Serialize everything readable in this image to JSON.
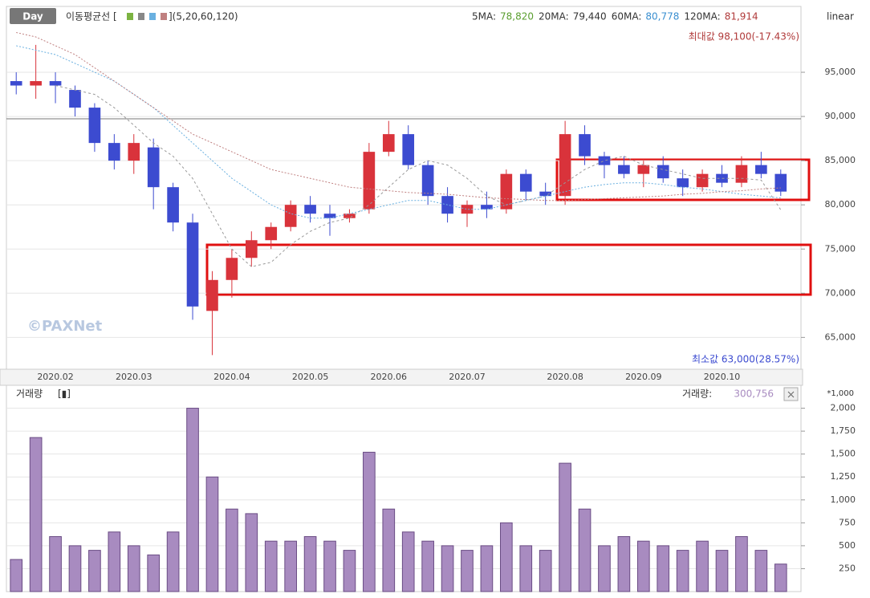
{
  "header": {
    "period": "Day",
    "ma_title": "이동평균선 [",
    "ma_params": "](5,20,60,120)",
    "ma_legend": [
      {
        "name": "5MA:",
        "value": "78,820",
        "color": "#5a9e2f"
      },
      {
        "name": "20MA:",
        "value": "79,440",
        "color": "#333333"
      },
      {
        "name": "60MA:",
        "value": "80,778",
        "color": "#3a8fd0"
      },
      {
        "name": "120MA:",
        "value": "81,914",
        "color": "#b03a3a"
      }
    ],
    "scale": "linear",
    "max_label": "최대값 98,100(-17.43%)",
    "min_label": "최소값 63,000(28.57%)",
    "volume_title": "거래량",
    "volume_box": "[▮]",
    "volume_legend_name": "거래량:",
    "volume_legend_value": "300,756",
    "volume_unit": "*1,000",
    "watermark": "©PAXNet"
  },
  "chart_data": [
    {
      "type": "candlestick",
      "up_color": "#d9333b",
      "down_color": "#3c4bd0",
      "categories": [
        null,
        null,
        "2020.02",
        null,
        null,
        null,
        "2020.03",
        null,
        null,
        null,
        null,
        "2020.04",
        null,
        null,
        null,
        "2020.05",
        null,
        null,
        null,
        "2020.06",
        null,
        null,
        null,
        "2020.07",
        null,
        null,
        null,
        null,
        "2020.08",
        null,
        null,
        null,
        "2020.09",
        null,
        null,
        null,
        "2020.10",
        null,
        null,
        null
      ],
      "open": [
        94000,
        93500,
        94000,
        93000,
        91000,
        87000,
        85000,
        86500,
        82000,
        78000,
        68000,
        71500,
        74000,
        76000,
        77500,
        80000,
        79000,
        78500,
        79500,
        86000,
        88000,
        84500,
        81000,
        79000,
        80000,
        79500,
        83500,
        81500,
        81000,
        88000,
        85500,
        84500,
        83500,
        84500,
        83000,
        82000,
        83500,
        82500,
        84500,
        83500
      ],
      "high": [
        95000,
        98100,
        95000,
        93500,
        91500,
        88000,
        88000,
        87500,
        82500,
        79000,
        72500,
        75000,
        77000,
        78000,
        80500,
        81000,
        80000,
        79500,
        87000,
        89500,
        89000,
        85000,
        82000,
        80500,
        81500,
        84000,
        84000,
        82500,
        89500,
        89000,
        86000,
        85500,
        85000,
        85500,
        84000,
        84000,
        84500,
        85500,
        86000,
        84000
      ],
      "low": [
        92500,
        92000,
        91500,
        90000,
        86000,
        84000,
        83500,
        79500,
        77000,
        67000,
        63000,
        69500,
        73000,
        75000,
        77000,
        78000,
        76500,
        78000,
        79000,
        85500,
        84000,
        80000,
        78000,
        77500,
        78500,
        79000,
        80500,
        80000,
        80000,
        84500,
        83000,
        83000,
        82000,
        82500,
        81000,
        81500,
        82000,
        82000,
        83000,
        81000
      ],
      "close": [
        93500,
        94000,
        93500,
        91000,
        87000,
        85000,
        87000,
        82000,
        78000,
        68500,
        71500,
        74000,
        76000,
        77500,
        80000,
        79000,
        78500,
        79000,
        86000,
        88000,
        84500,
        81000,
        79000,
        80000,
        79500,
        83500,
        81500,
        81000,
        88000,
        85500,
        84500,
        83500,
        84500,
        83000,
        82000,
        83500,
        82500,
        84500,
        83500,
        81500
      ],
      "series": [
        {
          "color": "#999999",
          "dash": "3 3",
          "values": [
            null,
            null,
            93500,
            93000,
            92500,
            91000,
            89000,
            87000,
            85500,
            83000,
            79000,
            75000,
            73000,
            73500,
            75500,
            77000,
            78000,
            78500,
            80000,
            82000,
            84000,
            85000,
            84500,
            83000,
            81000,
            80000,
            80500,
            81000,
            82500,
            84000,
            85000,
            85500,
            84500,
            84000,
            83500,
            83000,
            83000,
            83000,
            82800,
            79440
          ]
        },
        {
          "color": "#6ab0e0",
          "dash": "2 2",
          "values": [
            98000,
            97500,
            97000,
            96000,
            95000,
            94000,
            92500,
            91000,
            89000,
            87000,
            85000,
            83000,
            81500,
            80000,
            79000,
            78500,
            78500,
            79000,
            79500,
            80000,
            80500,
            80500,
            80000,
            79500,
            79500,
            80000,
            80500,
            81000,
            81500,
            82000,
            82300,
            82500,
            82500,
            82300,
            82000,
            81800,
            81500,
            81200,
            81000,
            80778
          ]
        },
        {
          "color": "#c08080",
          "dash": "2 2",
          "values": [
            99500,
            99000,
            98000,
            97000,
            95500,
            94000,
            92500,
            91000,
            89500,
            88000,
            87000,
            86000,
            85000,
            84000,
            83500,
            83000,
            82500,
            82000,
            81800,
            81600,
            81400,
            81300,
            81200,
            81000,
            80800,
            80700,
            80600,
            80500,
            80500,
            80600,
            80700,
            80800,
            80900,
            81000,
            81200,
            81300,
            81500,
            81600,
            81800,
            81914
          ]
        }
      ],
      "ylim": [
        61400,
        102450
      ],
      "yticks": [
        {
          "value": 65000,
          "label": "65,000"
        },
        {
          "value": 70000,
          "label": "70,000"
        },
        {
          "value": 75000,
          "label": "75,000"
        },
        {
          "value": 80000,
          "label": "80,000"
        },
        {
          "value": 85000,
          "label": "85,000"
        },
        {
          "value": 90000,
          "label": "90,000"
        },
        {
          "value": 95000,
          "label": "95,000"
        }
      ],
      "grid": true
    },
    {
      "type": "bar",
      "color": "#a88bc0",
      "edge": "#6a4c84",
      "values": [
        350,
        1680,
        600,
        500,
        450,
        650,
        500,
        400,
        650,
        2000,
        1250,
        900,
        850,
        550,
        550,
        600,
        550,
        450,
        1520,
        900,
        650,
        550,
        500,
        450,
        500,
        750,
        500,
        450,
        1400,
        900,
        500,
        600,
        550,
        500,
        450,
        550,
        450,
        600,
        450,
        300
      ],
      "ylim": [
        0,
        2215
      ],
      "yticks": [
        250,
        500,
        750,
        {
          "value": 1000,
          "label": "1,000"
        },
        {
          "value": 1250,
          "label": "1,250"
        },
        {
          "value": 1500,
          "label": "1,500"
        },
        {
          "value": 1750,
          "label": "1,750"
        },
        {
          "value": 2000,
          "label": "2,000"
        }
      ],
      "grid": true
    }
  ]
}
